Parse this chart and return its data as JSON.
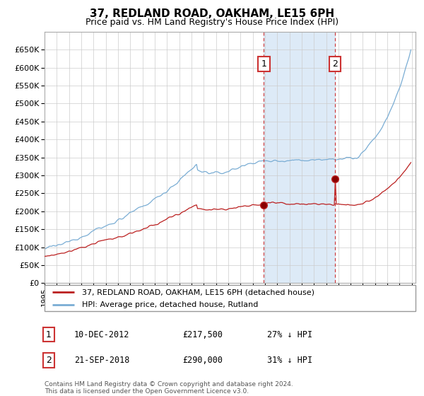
{
  "title": "37, REDLAND ROAD, OAKHAM, LE15 6PH",
  "subtitle": "Price paid vs. HM Land Registry's House Price Index (HPI)",
  "footer": "Contains HM Land Registry data © Crown copyright and database right 2024.\nThis data is licensed under the Open Government Licence v3.0.",
  "legend_entry1": "37, REDLAND ROAD, OAKHAM, LE15 6PH (detached house)",
  "legend_entry2": "HPI: Average price, detached house, Rutland",
  "annotation1_date": "10-DEC-2012",
  "annotation1_price": "£217,500",
  "annotation1_note": "27% ↓ HPI",
  "annotation2_date": "21-SEP-2018",
  "annotation2_price": "£290,000",
  "annotation2_note": "31% ↓ HPI",
  "hpi_color": "#7aadd4",
  "price_color": "#bb2020",
  "highlight_color": "#ddeaf7",
  "vline_color": "#cc3333",
  "sale1_x": 2012.92,
  "sale1_y": 217500,
  "sale2_x": 2018.71,
  "sale2_y": 290000,
  "ylim": [
    0,
    700000
  ],
  "yticks": [
    0,
    50000,
    100000,
    150000,
    200000,
    250000,
    300000,
    350000,
    400000,
    450000,
    500000,
    550000,
    600000,
    650000
  ],
  "xlim_start": 1995.0,
  "xlim_end": 2025.3
}
